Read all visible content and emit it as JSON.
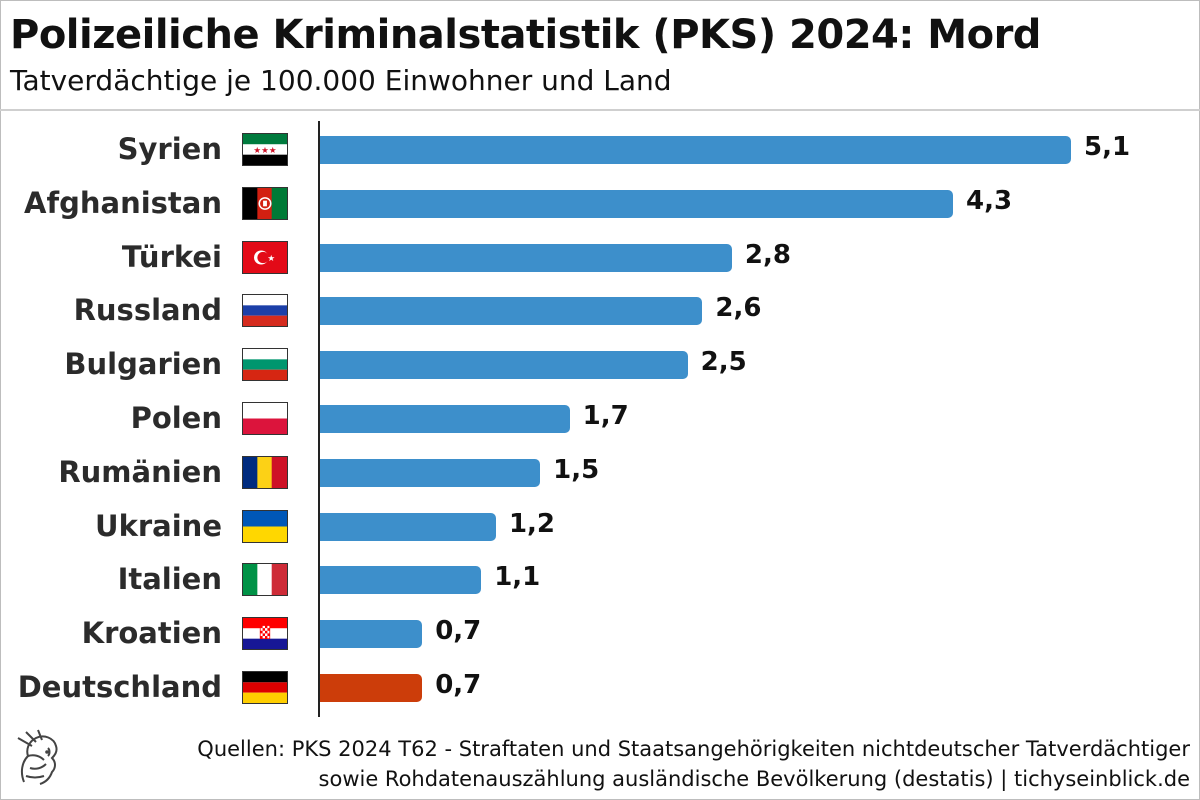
{
  "title": "Polizeiliche Kriminalstatistik (PKS) 2024: Mord",
  "subtitle": "Tatverdächtige je 100.000 Einwohner und Land",
  "source_line1": "Quellen: PKS 2024 T62 - Straftaten und Staatsangehörigkeiten nichtdeutscher Tatverdächtiger",
  "source_line2": "sowie Rohdatenauszählung ausländische Bevölkerung (destatis) | tichyseinblick.de",
  "colors": {
    "bar": "#3d8fcb",
    "highlight": "#cc3d0a"
  },
  "chart_data": {
    "type": "bar",
    "orientation": "horizontal",
    "title": "Polizeiliche Kriminalstatistik (PKS) 2024: Mord",
    "subtitle": "Tatverdächtige je 100.000 Einwohner und Land",
    "xlabel": "",
    "ylabel": "",
    "xlim": [
      0,
      5.1
    ],
    "grid": false,
    "categories": [
      "Syrien",
      "Afghanistan",
      "Türkei",
      "Russland",
      "Bulgarien",
      "Polen",
      "Rumänien",
      "Ukraine",
      "Italien",
      "Kroatien",
      "Deutschland"
    ],
    "values": [
      5.1,
      4.3,
      2.8,
      2.6,
      2.5,
      1.7,
      1.5,
      1.2,
      1.1,
      0.7,
      0.7
    ],
    "labels": [
      "5,1",
      "4,3",
      "2,8",
      "2,6",
      "2,5",
      "1,7",
      "1,5",
      "1,2",
      "1,1",
      "0,7",
      "0,7"
    ],
    "flags": [
      "flag-syria-icon",
      "flag-afghanistan-icon",
      "flag-turkey-icon",
      "flag-russia-icon",
      "flag-bulgaria-icon",
      "flag-poland-icon",
      "flag-romania-icon",
      "flag-ukraine-icon",
      "flag-italy-icon",
      "flag-croatia-icon",
      "flag-germany-icon"
    ],
    "highlight": "Deutschland"
  }
}
